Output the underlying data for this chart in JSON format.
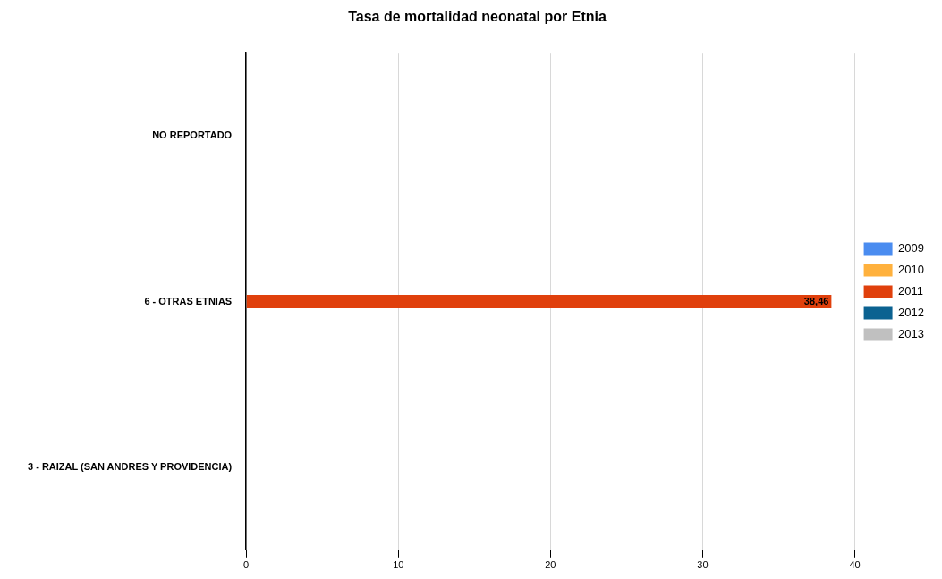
{
  "chart_data": {
    "type": "bar",
    "orientation": "horizontal",
    "title": "Tasa de mortalidad neonatal por Etnia",
    "categories": [
      "NO REPORTADO",
      "6 - OTRAS ETNIAS",
      "3 - RAIZAL (SAN ANDRES Y PROVIDENCIA)"
    ],
    "series": [
      {
        "name": "2009",
        "color": "#4a8cf0",
        "values": [
          null,
          null,
          null
        ]
      },
      {
        "name": "2010",
        "color": "#ffb13d",
        "values": [
          null,
          null,
          null
        ]
      },
      {
        "name": "2011",
        "color": "#e0400c",
        "values": [
          null,
          38.46,
          null
        ],
        "value_labels": [
          null,
          "38,46",
          null
        ]
      },
      {
        "name": "2012",
        "color": "#0b6291",
        "values": [
          null,
          null,
          null
        ]
      },
      {
        "name": "2013",
        "color": "#c0c0c0",
        "values": [
          null,
          null,
          null
        ]
      }
    ],
    "xlim": [
      0,
      40
    ],
    "xticks": [
      0,
      10,
      20,
      30,
      40
    ],
    "grid": "x",
    "legend": "right"
  }
}
